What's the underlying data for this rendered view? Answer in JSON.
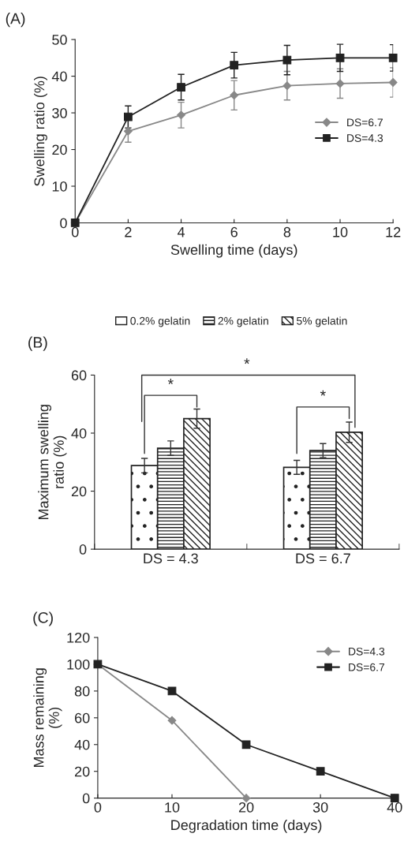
{
  "chart_data": [
    {
      "type": "line",
      "title": "(A)",
      "xlabel": "Swelling time (days)",
      "ylabel": "Swelling ratio (%)",
      "x": [
        0,
        2,
        4,
        6,
        8,
        10,
        12
      ],
      "xlim": [
        0,
        12
      ],
      "xticks": [
        0,
        2,
        4,
        6,
        8,
        10,
        12
      ],
      "ylim": [
        0,
        50
      ],
      "yticks": [
        0,
        10,
        20,
        30,
        40,
        50
      ],
      "legend": "center right",
      "grid": false,
      "series": [
        {
          "name": "DS=6.7",
          "color": "#888888",
          "marker": "diamond",
          "values": [
            0,
            25,
            29.4,
            34.8,
            37.4,
            38,
            38.3
          ],
          "errors": [
            null,
            3,
            3.5,
            4,
            3.9,
            4,
            4
          ]
        },
        {
          "name": "DS=4.3",
          "color": "#222222",
          "marker": "square",
          "values": [
            0,
            28.9,
            37,
            43,
            44.4,
            45,
            45
          ],
          "errors": [
            null,
            3,
            3.5,
            3.5,
            4,
            3.7,
            3.6
          ]
        }
      ]
    },
    {
      "type": "bar",
      "title": "(B)",
      "ylabel": "Maximum swelling\nratio (%)",
      "categories": [
        "DS = 4.3",
        "DS = 6.7"
      ],
      "ylim": [
        0,
        60
      ],
      "yticks": [
        0,
        20,
        40,
        60
      ],
      "legend": "top",
      "grid": false,
      "annotations": [
        "*",
        "*",
        "*"
      ],
      "series": [
        {
          "name": "0.2% gelatin",
          "color": "#222222",
          "values": [
            28.8,
            28.2
          ],
          "errors": [
            2.5,
            2.4
          ]
        },
        {
          "name": "2% gelatin",
          "color": "#222222",
          "values": [
            34.8,
            34.0
          ],
          "errors": [
            2.5,
            2.4
          ]
        },
        {
          "name": "5% gelatin",
          "color": "#222222",
          "values": [
            45.0,
            40.3
          ],
          "errors": [
            3.3,
            3.5
          ]
        }
      ]
    },
    {
      "type": "line",
      "title": "(C)",
      "xlabel": "Degradation time (days)",
      "ylabel": "Mass remaining\n(%)",
      "xlim": [
        0,
        40
      ],
      "xticks": [
        0,
        10,
        20,
        30,
        40
      ],
      "ylim": [
        0,
        120
      ],
      "yticks": [
        0,
        20,
        40,
        60,
        80,
        100,
        120
      ],
      "legend": "top right",
      "grid": false,
      "series": [
        {
          "name": "DS=4.3",
          "color": "#888888",
          "marker": "diamond",
          "x": [
            0,
            10,
            20
          ],
          "values": [
            100,
            58,
            0
          ]
        },
        {
          "name": "DS=6.7",
          "color": "#222222",
          "marker": "square",
          "x": [
            0,
            10,
            20,
            30,
            40
          ],
          "values": [
            100,
            80,
            40,
            20,
            0
          ]
        }
      ]
    }
  ]
}
